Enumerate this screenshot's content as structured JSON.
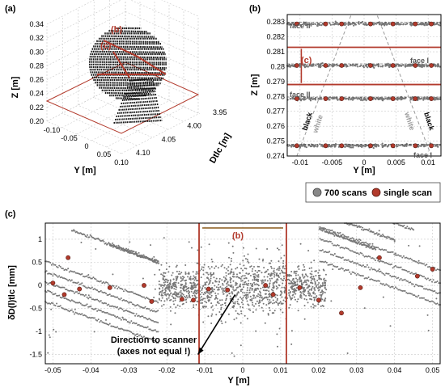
{
  "panels": {
    "a": "(a)",
    "b": "(b)",
    "c": "(c)"
  },
  "chart_data": [
    {
      "type": "scatter",
      "panel": "(a)",
      "title": "",
      "xlabel": "Y [m]",
      "ylabel": "Z [m]",
      "zlabel": "Dtlc [m]",
      "xticks": [
        "-0.10",
        "-0.05",
        "0",
        "0.05",
        "0.10"
      ],
      "yticks": [
        "0.20",
        "0.22",
        "0.24",
        "0.26",
        "0.28",
        "0.30",
        "0.32",
        "0.34"
      ],
      "zticks": [
        "3.95",
        "4.00",
        "4.05",
        "4.10"
      ],
      "annotations": [
        "(b)",
        "(c)"
      ]
    },
    {
      "type": "scatter",
      "panel": "(b)",
      "xlabel": "Y [m]",
      "ylabel": "Z [m]",
      "xlim": [
        -0.012,
        0.012
      ],
      "ylim": [
        0.274,
        0.2835
      ],
      "xticks": [
        "-0.01",
        "-0.005",
        "0",
        "0.005",
        "0.01"
      ],
      "yticks": [
        "0.274",
        "0.275",
        "0.276",
        "0.277",
        "0.278",
        "0.279",
        "0.28",
        "0.281",
        "0.282",
        "0.283"
      ],
      "bands": [
        0.28287,
        0.28008,
        0.27785,
        0.27469
      ],
      "single_scan_y": [
        -0.0105,
        -0.006,
        -0.0035,
        0.001,
        0.0045,
        0.008,
        0.0105
      ],
      "labels": {
        "face2_top": "face II",
        "face1_right": "face I",
        "face2_left": "face II",
        "face1_bottom": "face I",
        "black_left": "black",
        "white_left": "white",
        "white_right": "white",
        "black_right": "black",
        "c_marker": "(c)"
      }
    },
    {
      "type": "scatter",
      "panel": "(c)",
      "xlabel": "Y [m]",
      "ylabel": "δD(l)tlc [mm]",
      "xlim": [
        -0.052,
        0.052
      ],
      "ylim": [
        -1.7,
        1.35
      ],
      "xticks": [
        "-0.05",
        "-0.04",
        "-0.03",
        "-0.02",
        "-0.01",
        "0",
        "0.01",
        "0.02",
        "0.03",
        "0.04",
        "0.05"
      ],
      "yticks": [
        "1",
        "0.5",
        "0",
        "-0.5",
        "-1",
        "-1.5"
      ],
      "region_b": [
        -0.0115,
        0.0115
      ],
      "annotation": "Direction to scanner",
      "annotation2": "(axes not equal !)",
      "b_marker": "(b)"
    }
  ],
  "legend": {
    "scans700": "700 scans",
    "single": "single scan"
  },
  "colors": {
    "red": "#b23a2c",
    "gray": "#777777",
    "legend_bg": "#ffffff"
  }
}
